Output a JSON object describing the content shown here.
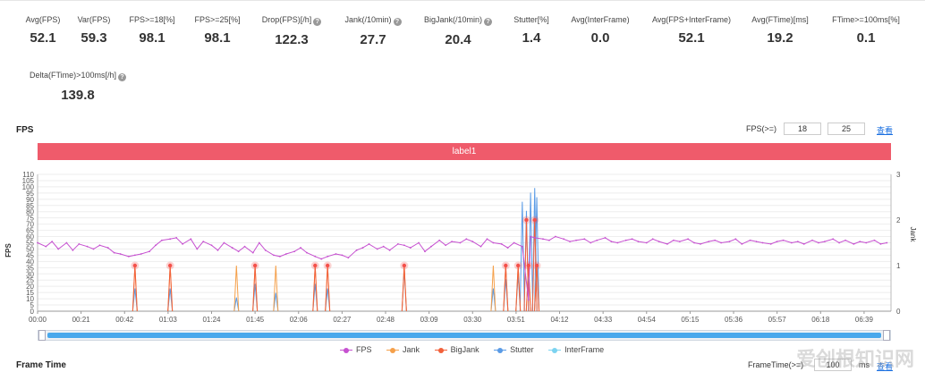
{
  "metrics": [
    {
      "label": "Avg(FPS)",
      "value": "52.1",
      "help": false
    },
    {
      "label": "Var(FPS)",
      "value": "59.3",
      "help": false
    },
    {
      "label": "FPS>=18[%]",
      "value": "98.1",
      "help": false
    },
    {
      "label": "FPS>=25[%]",
      "value": "98.1",
      "help": false
    },
    {
      "label": "Drop(FPS)[/h]",
      "value": "122.3",
      "help": true
    },
    {
      "label": "Jank(/10min)",
      "value": "27.7",
      "help": true
    },
    {
      "label": "BigJank(/10min)",
      "value": "20.4",
      "help": true
    },
    {
      "label": "Stutter[%]",
      "value": "1.4",
      "help": false
    },
    {
      "label": "Avg(InterFrame)",
      "value": "0.0",
      "help": false
    },
    {
      "label": "Avg(FPS+InterFrame)",
      "value": "52.1",
      "help": false
    },
    {
      "label": "Avg(FTime)[ms]",
      "value": "19.2",
      "help": false
    },
    {
      "label": "FTime>=100ms[%]",
      "value": "0.1",
      "help": false
    },
    {
      "label": "Delta(FTime)>100ms[/h]",
      "value": "139.8",
      "help": true
    }
  ],
  "help_glyph": "?",
  "fps_section": {
    "title": "FPS",
    "threshold_label": "FPS(>=)",
    "threshold_values": [
      "18",
      "25"
    ],
    "apply_link": "查看",
    "label_bar": "label1"
  },
  "frame_section": {
    "title": "Frame Time",
    "threshold_label": "FrameTime(>=)",
    "threshold_value": "100",
    "unit": "ms",
    "apply_link": "查看"
  },
  "watermark": "爱创根知识网",
  "colors": {
    "fps": "#c651d0",
    "jank": "#f5a04a",
    "bigjank": "#f2603a",
    "stutter": "#5a9be6",
    "interframe": "#7cd3f0",
    "marker": "#f4504a"
  },
  "chart_data": {
    "type": "line",
    "title": "FPS",
    "ylabel": "FPS",
    "y2label": "Jank",
    "ylim": [
      0,
      110
    ],
    "y_ticks": [
      0,
      5,
      10,
      15,
      20,
      25,
      30,
      35,
      40,
      45,
      50,
      55,
      60,
      65,
      70,
      75,
      80,
      85,
      90,
      95,
      100,
      105,
      110
    ],
    "y2lim": [
      0,
      3
    ],
    "y2_ticks": [
      0,
      1,
      2,
      3
    ],
    "xlim": [
      0,
      412
    ],
    "x_tick_seconds": [
      0,
      21,
      42,
      63,
      84,
      105,
      126,
      147,
      168,
      189,
      210,
      231,
      252,
      273,
      294,
      315,
      336,
      357,
      378,
      399
    ],
    "x_tick_labels": [
      "00:00",
      "00:21",
      "00:42",
      "01:03",
      "01:24",
      "01:45",
      "02:06",
      "02:27",
      "02:48",
      "03:09",
      "03:30",
      "03:51",
      "04:12",
      "04:33",
      "04:54",
      "05:15",
      "05:36",
      "05:57",
      "06:18",
      "06:39"
    ],
    "legend": [
      "FPS",
      "Jank",
      "BigJank",
      "Stutter",
      "InterFrame"
    ],
    "grid": true,
    "series": [
      {
        "name": "FPS",
        "x": [
          0,
          4,
          7,
          10,
          14,
          17,
          20,
          24,
          27,
          30,
          34,
          37,
          40,
          44,
          47,
          50,
          54,
          57,
          60,
          64,
          67,
          70,
          74,
          77,
          80,
          84,
          87,
          90,
          94,
          97,
          100,
          104,
          107,
          110,
          114,
          117,
          120,
          124,
          127,
          130,
          134,
          137,
          140,
          144,
          147,
          150,
          154,
          157,
          160,
          164,
          167,
          170,
          174,
          177,
          180,
          184,
          187,
          190,
          194,
          197,
          200,
          204,
          207,
          210,
          214,
          217,
          220,
          224,
          227,
          230,
          234,
          237,
          238,
          240,
          244,
          247,
          250,
          254,
          257,
          260,
          264,
          267,
          270,
          274,
          277,
          280,
          284,
          287,
          290,
          294,
          297,
          300,
          304,
          307,
          310,
          314,
          317,
          320,
          324,
          327,
          330,
          334,
          337,
          340,
          344,
          347,
          350,
          354,
          357,
          360,
          364,
          367,
          370,
          374,
          377,
          380,
          384,
          387,
          390,
          394,
          397,
          400,
          404,
          407,
          410
        ],
        "y": [
          55,
          52,
          56,
          50,
          55,
          49,
          54,
          52,
          50,
          53,
          51,
          47,
          46,
          44,
          45,
          46,
          48,
          53,
          57,
          58,
          59,
          54,
          58,
          50,
          56,
          53,
          49,
          55,
          51,
          48,
          52,
          47,
          55,
          49,
          45,
          44,
          46,
          48,
          51,
          47,
          44,
          42,
          44,
          46,
          45,
          43,
          49,
          51,
          54,
          50,
          52,
          49,
          54,
          53,
          51,
          55,
          48,
          52,
          57,
          53,
          56,
          55,
          58,
          56,
          52,
          58,
          55,
          54,
          51,
          55,
          52,
          9,
          60,
          59,
          58,
          57,
          60,
          58,
          56,
          57,
          58,
          55,
          57,
          59,
          56,
          55,
          57,
          58,
          56,
          55,
          58,
          56,
          54,
          57,
          56,
          58,
          55,
          54,
          56,
          57,
          55,
          56,
          58,
          54,
          57,
          56,
          55,
          54,
          56,
          57,
          55,
          56,
          54,
          57,
          55,
          56,
          58,
          55,
          57,
          54,
          56,
          55,
          57,
          54,
          55
        ]
      },
      {
        "name": "Jank",
        "spikes": [
          [
            47,
            1
          ],
          [
            64,
            1
          ],
          [
            96,
            1
          ],
          [
            105,
            1
          ],
          [
            115,
            1
          ],
          [
            134,
            1
          ],
          [
            140,
            1
          ],
          [
            177,
            1
          ],
          [
            220,
            1
          ],
          [
            226,
            1
          ],
          [
            232,
            1
          ],
          [
            237,
            1
          ],
          [
            241,
            1
          ]
        ]
      },
      {
        "name": "BigJank",
        "spikes": [
          [
            47,
            1
          ],
          [
            64,
            1
          ],
          [
            105,
            1
          ],
          [
            134,
            1
          ],
          [
            140,
            1
          ],
          [
            177,
            1
          ],
          [
            226,
            1
          ],
          [
            232,
            1
          ],
          [
            236,
            2
          ],
          [
            237,
            1
          ],
          [
            240,
            2
          ],
          [
            241,
            1
          ]
        ]
      },
      {
        "name": "Stutter",
        "spikes": [
          [
            47,
            0.5
          ],
          [
            64,
            0.5
          ],
          [
            96,
            0.3
          ],
          [
            105,
            0.6
          ],
          [
            115,
            0.4
          ],
          [
            134,
            0.6
          ],
          [
            140,
            0.5
          ],
          [
            177,
            0.9
          ],
          [
            220,
            0.5
          ],
          [
            226,
            0.7
          ],
          [
            232,
            0.8
          ],
          [
            234,
            2.4
          ],
          [
            236,
            2.2
          ],
          [
            238,
            2.6
          ],
          [
            240,
            2.7
          ],
          [
            241,
            2.5
          ]
        ]
      },
      {
        "name": "InterFrame",
        "spikes": []
      }
    ]
  }
}
